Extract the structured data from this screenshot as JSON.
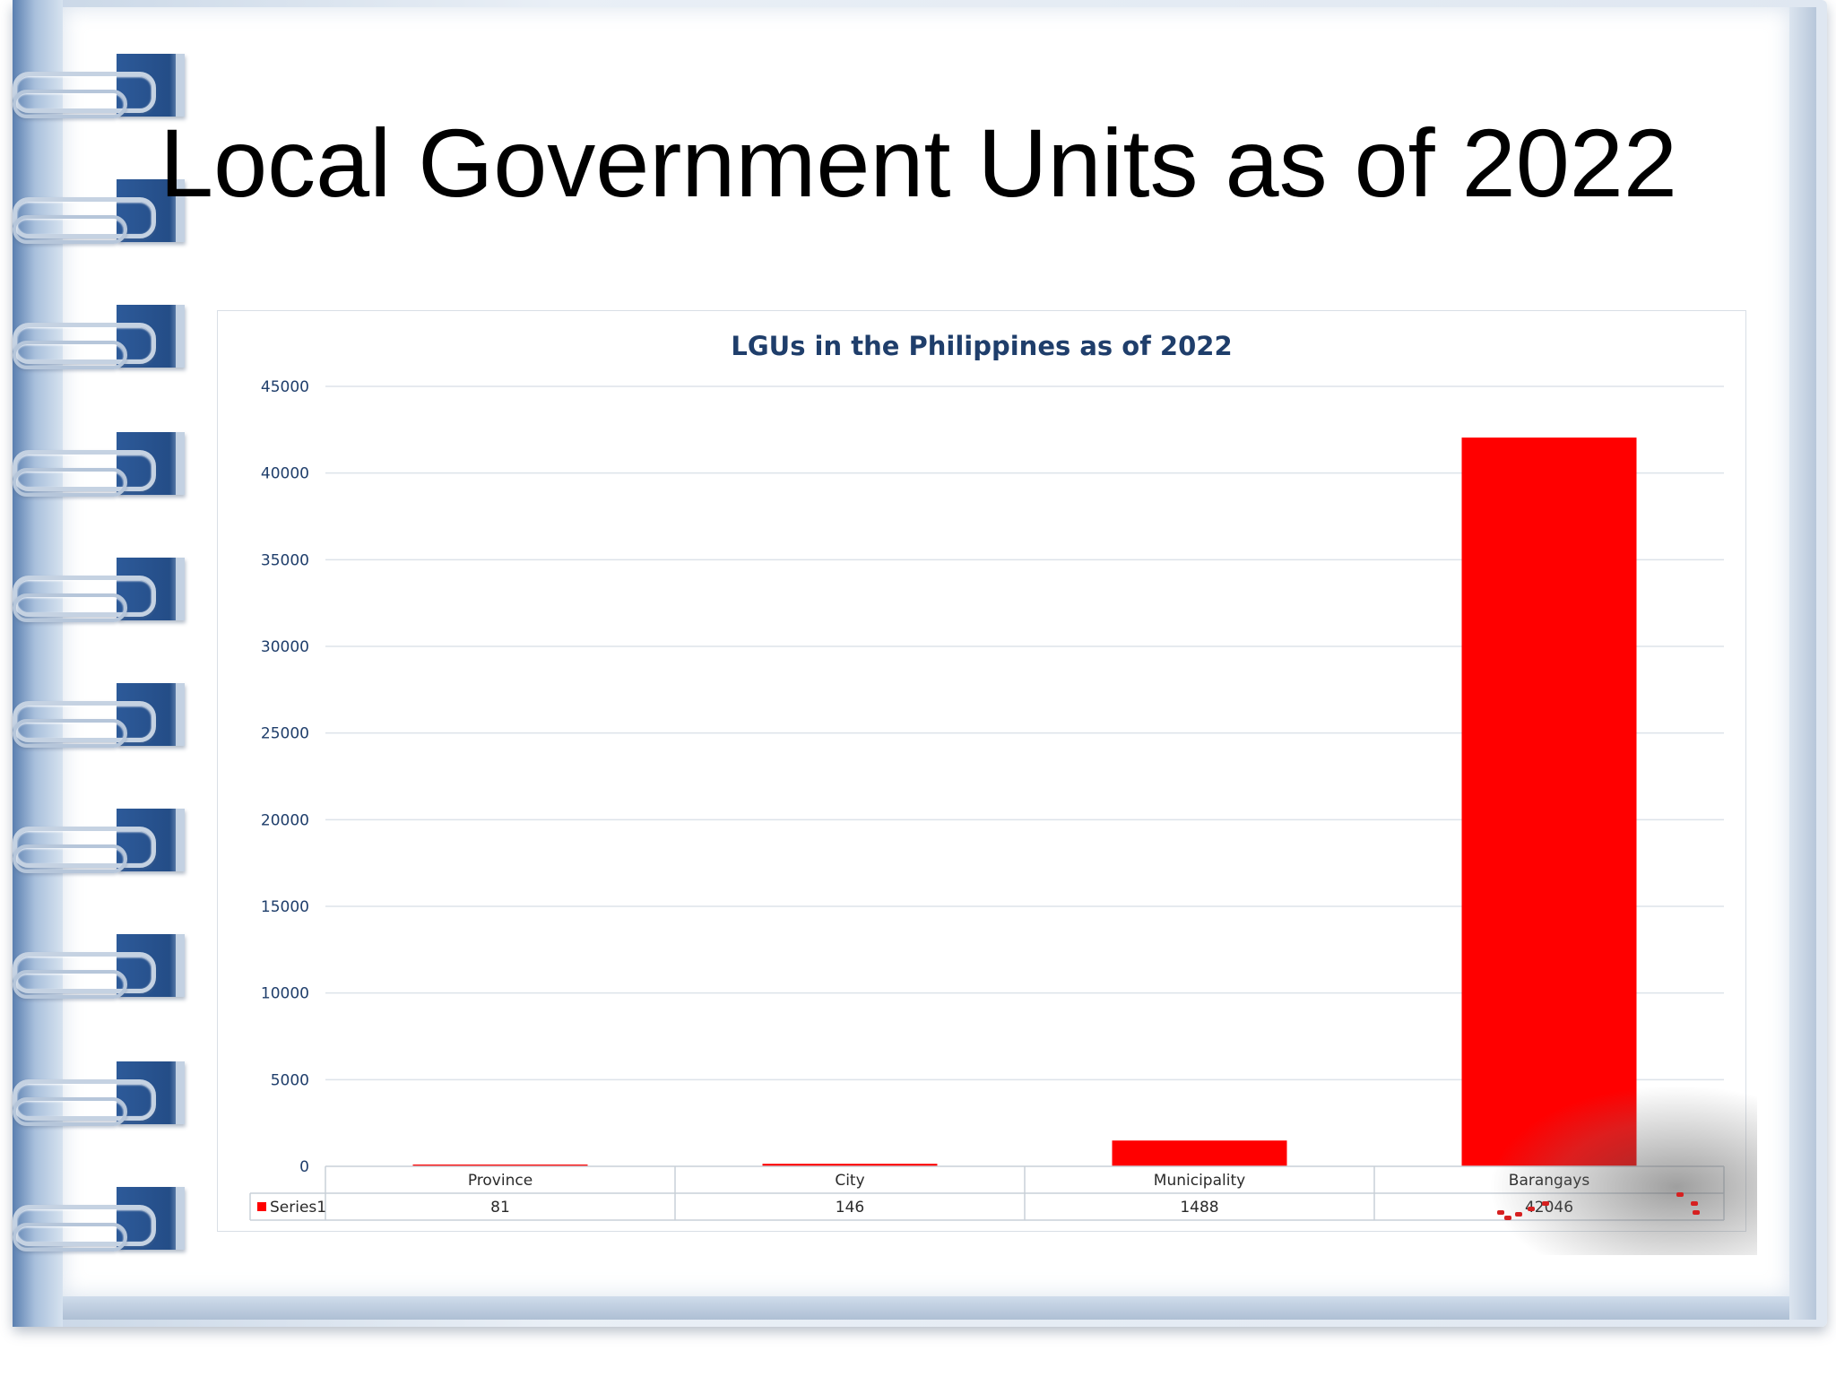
{
  "slide": {
    "title": "Local Government Units as of 2022"
  },
  "colors": {
    "bar": "#ff0000",
    "title_text": "#1f3e6b",
    "grid": "#dde3ea",
    "ring_tab": "#2d5a99"
  },
  "decorations": {
    "ring_icon": "spiral-ring-icon"
  },
  "chart_data": {
    "type": "bar",
    "title": "LGUs in the Philippines as of 2022",
    "categories": [
      "Province",
      "City",
      "Municipality",
      "Barangays"
    ],
    "series": [
      {
        "name": "Series1",
        "values": [
          81,
          146,
          1488,
          42046
        ]
      }
    ],
    "ylim": [
      0,
      45000
    ],
    "yticks": [
      0,
      5000,
      10000,
      15000,
      20000,
      25000,
      30000,
      35000,
      40000,
      45000
    ],
    "grid": true,
    "legend": "data-table",
    "data_table": true
  }
}
